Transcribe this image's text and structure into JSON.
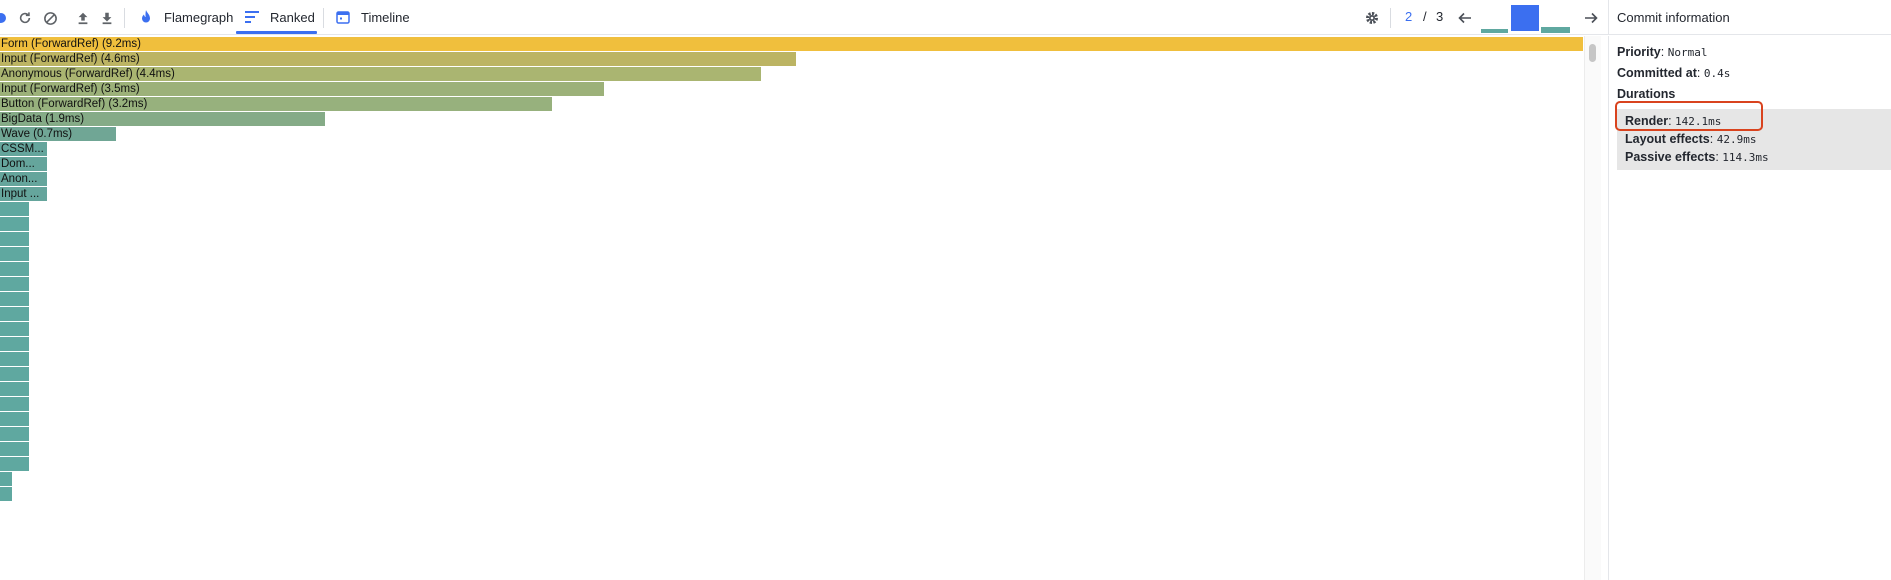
{
  "toolbar": {
    "tabs": [
      {
        "label": "Flamegraph",
        "icon": "flame-icon",
        "active": false
      },
      {
        "label": "Ranked",
        "icon": "ranked-icon",
        "active": true
      },
      {
        "label": "Timeline",
        "icon": "calendar-icon",
        "active": false
      }
    ],
    "commit_nav": {
      "current": "2",
      "separator": "/",
      "total": "3"
    },
    "commit_bars": [
      {
        "level": 0.15,
        "color": "#5fa8a0",
        "selected": false
      },
      {
        "level": 0.9,
        "color": "#3b6ff0",
        "selected": true
      },
      {
        "level": 0.22,
        "color": "#5fa8a0",
        "selected": false
      }
    ],
    "accent_color": "#3b6ff0"
  },
  "ranked": {
    "items": [
      {
        "label": "Form (ForwardRef) (9.2ms)",
        "fraction": 1.0,
        "color": "#f0bf3d"
      },
      {
        "label": "Input (ForwardRef) (4.6ms)",
        "fraction": 0.503,
        "color": "#bcb463"
      },
      {
        "label": "Anonymous (ForwardRef) (4.4ms)",
        "fraction": 0.481,
        "color": "#aab571"
      },
      {
        "label": "Input (ForwardRef) (3.5ms)",
        "fraction": 0.382,
        "color": "#9cb179"
      },
      {
        "label": "Button (ForwardRef) (3.2ms)",
        "fraction": 0.349,
        "color": "#97b17d"
      },
      {
        "label": "BigData (1.9ms)",
        "fraction": 0.206,
        "color": "#85ab87"
      },
      {
        "label": "Wave (0.7ms)",
        "fraction": 0.074,
        "color": "#70a695"
      },
      {
        "label": "CSSM...",
        "fraction": 0.03,
        "color": "#65a59c"
      },
      {
        "label": "Dom...",
        "fraction": 0.03,
        "color": "#65a59c"
      },
      {
        "label": "Anon...",
        "fraction": 0.03,
        "color": "#65a59c"
      },
      {
        "label": "Input ...",
        "fraction": 0.03,
        "color": "#65a59c"
      },
      {
        "label": "",
        "fraction": 0.019,
        "color": "#5fa8a0"
      },
      {
        "label": "",
        "fraction": 0.019,
        "color": "#5fa8a0"
      },
      {
        "label": "",
        "fraction": 0.019,
        "color": "#5fa8a0"
      },
      {
        "label": "",
        "fraction": 0.019,
        "color": "#5fa8a0"
      },
      {
        "label": "",
        "fraction": 0.019,
        "color": "#5fa8a0"
      },
      {
        "label": "",
        "fraction": 0.019,
        "color": "#5fa8a0"
      },
      {
        "label": "",
        "fraction": 0.019,
        "color": "#5fa8a0"
      },
      {
        "label": "",
        "fraction": 0.019,
        "color": "#5fa8a0"
      },
      {
        "label": "",
        "fraction": 0.019,
        "color": "#5fa8a0"
      },
      {
        "label": "",
        "fraction": 0.019,
        "color": "#5fa8a0"
      },
      {
        "label": "",
        "fraction": 0.019,
        "color": "#5fa8a0"
      },
      {
        "label": "",
        "fraction": 0.019,
        "color": "#5fa8a0"
      },
      {
        "label": "",
        "fraction": 0.019,
        "color": "#5fa8a0"
      },
      {
        "label": "",
        "fraction": 0.019,
        "color": "#5fa8a0"
      },
      {
        "label": "",
        "fraction": 0.019,
        "color": "#5fa8a0"
      },
      {
        "label": "",
        "fraction": 0.019,
        "color": "#5fa8a0"
      },
      {
        "label": "",
        "fraction": 0.019,
        "color": "#5fa8a0"
      },
      {
        "label": "",
        "fraction": 0.019,
        "color": "#5fa8a0"
      },
      {
        "label": "",
        "fraction": 0.008,
        "color": "#5fa8a0"
      },
      {
        "label": "",
        "fraction": 0.008,
        "color": "#5fa8a0"
      }
    ]
  },
  "commit_info": {
    "title": "Commit information",
    "priority_label": "Priority",
    "priority_value": "Normal",
    "committed_label": "Committed at",
    "committed_value": "0.4s",
    "durations_label": "Durations",
    "render_label": "Render",
    "render_value": "142.1ms",
    "layout_label": "Layout effects",
    "layout_value": "42.9ms",
    "passive_label": "Passive effects",
    "passive_value": "114.3ms",
    "highlight_color": "#d9431e"
  }
}
